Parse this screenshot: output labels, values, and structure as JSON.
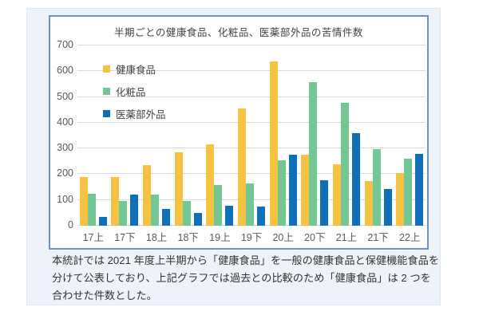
{
  "chart_data": {
    "type": "bar",
    "title": "半期ごとの健康食品、化粧品、医薬部外品の苦情件数",
    "categories": [
      "17上",
      "17下",
      "18上",
      "18下",
      "19上",
      "19下",
      "20上",
      "20下",
      "21上",
      "21下",
      "22上"
    ],
    "series": [
      {
        "name": "健康食品",
        "color": "#f6c242",
        "values": [
          190,
          190,
          235,
          285,
          315,
          455,
          638,
          277,
          240,
          175,
          203
        ]
      },
      {
        "name": "化粧品",
        "color": "#72c795",
        "values": [
          125,
          95,
          120,
          95,
          157,
          165,
          255,
          557,
          478,
          298,
          260
        ]
      },
      {
        "name": "医薬部外品",
        "color": "#0e70b8",
        "values": [
          33,
          120,
          65,
          50,
          78,
          75,
          276,
          178,
          358,
          143,
          280
        ]
      }
    ],
    "xlabel": "",
    "ylabel": "",
    "ylim": [
      0,
      700
    ],
    "yticks": [
      0,
      100,
      200,
      300,
      400,
      500,
      600,
      700
    ],
    "grid": true,
    "legend_position": "upper-left-vertical",
    "colors": {
      "grid_line": "#d9d9d9",
      "axis_text": "#595959",
      "title_text": "#404040",
      "panel_border": "#6a92c8",
      "card_background": "#eef2f9"
    }
  },
  "footnote": {
    "lines": [
      "本統計では 2021 年度上半期から「健康食品」を一般の健康食品と保健機能食品を",
      "分けて公表しており、上記グラフでは過去との比較のため「健康食品」は 2 つを",
      "合わせた件数とした。"
    ]
  }
}
